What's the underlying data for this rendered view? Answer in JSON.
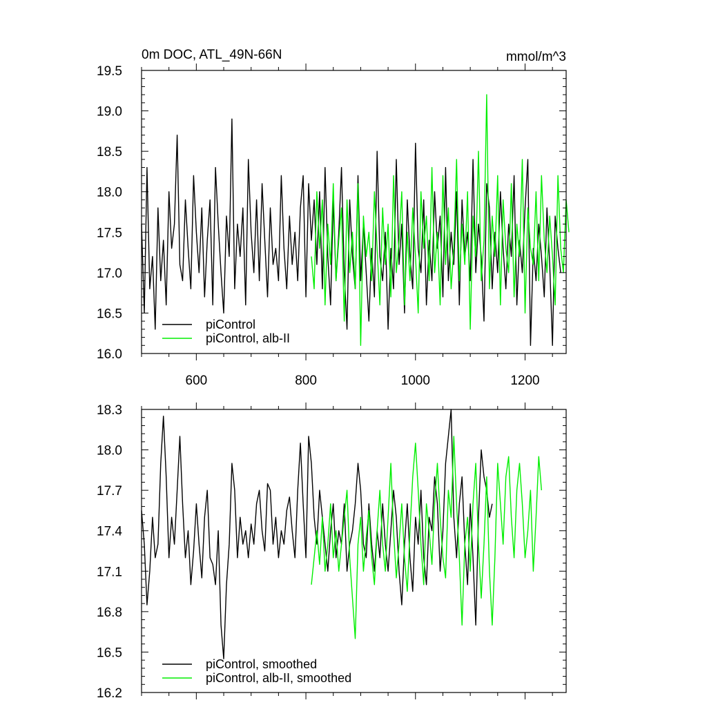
{
  "chart_data": [
    {
      "type": "line",
      "title": "0m DOC, ATL_49N-66N",
      "units": "mmol/m^3",
      "xlim": [
        500,
        1275
      ],
      "ylim": [
        16.0,
        19.5
      ],
      "xticks": [
        600,
        800,
        1000,
        1200
      ],
      "xtick_labels": [
        "600",
        "800",
        "1000",
        "1200"
      ],
      "yticks": [
        16.0,
        16.5,
        17.0,
        17.5,
        18.0,
        18.5,
        19.0,
        19.5
      ],
      "ytick_labels": [
        "16.0",
        "16.5",
        "17.0",
        "17.5",
        "18.0",
        "18.5",
        "19.0",
        "19.5"
      ],
      "grid": false,
      "legend_position": "bottom-left",
      "series": [
        {
          "name": "piControl",
          "color": "#000000",
          "x_start": 500,
          "x_step": 5,
          "values": [
            17.6,
            16.5,
            18.3,
            16.8,
            17.2,
            16.3,
            17.8,
            16.9,
            17.4,
            16.6,
            18.0,
            17.3,
            17.6,
            18.7,
            17.1,
            16.9,
            17.9,
            17.3,
            16.8,
            18.2,
            17.5,
            17.0,
            17.8,
            16.7,
            17.4,
            17.9,
            16.6,
            18.3,
            17.6,
            17.0,
            16.5,
            17.7,
            17.2,
            18.9,
            16.8,
            17.6,
            17.2,
            17.8,
            16.6,
            18.4,
            17.5,
            17.0,
            17.9,
            16.9,
            18.1,
            17.4,
            16.7,
            17.8,
            17.1,
            17.3,
            16.9,
            18.2,
            17.3,
            16.8,
            17.7,
            17.1,
            17.5,
            16.9,
            17.8,
            18.2,
            16.7,
            18.1,
            17.4,
            17.9,
            17.1,
            18.0,
            16.8,
            18.3,
            17.2,
            16.6,
            17.9,
            16.9,
            17.5,
            18.3,
            17.0,
            16.3,
            17.9,
            17.2,
            16.8,
            18.2,
            16.9,
            17.6,
            17.0,
            16.4,
            17.3,
            16.7,
            18.5,
            17.2,
            16.9,
            17.5,
            16.3,
            17.3,
            16.8,
            18.4,
            17.1,
            17.6,
            16.5,
            17.9,
            17.2,
            16.8,
            18.6,
            17.3,
            17.0,
            17.9,
            16.6,
            17.4,
            16.9,
            18.0,
            17.3,
            17.7,
            16.7,
            18.3,
            16.9,
            17.5,
            17.1,
            18.0,
            16.6,
            17.9,
            17.2,
            17.5,
            16.9,
            18.4,
            17.0,
            17.6,
            17.2,
            16.4,
            18.1,
            17.8,
            16.8,
            17.5,
            17.0,
            18.0,
            17.3,
            16.8,
            17.6,
            17.2,
            18.2,
            16.6,
            17.4,
            17.0,
            17.8,
            18.4,
            16.1,
            17.3,
            16.9,
            17.6,
            17.2,
            16.7,
            17.8,
            17.1,
            16.1,
            17.7,
            17.3,
            17.0
          ]
        },
        {
          "name": "piControl, alb-II",
          "color": "#00ee00",
          "x_start": 810,
          "x_step": 5,
          "values": [
            17.2,
            16.8,
            18.0,
            17.3,
            17.9,
            16.6,
            17.6,
            17.1,
            18.1,
            16.9,
            17.4,
            17.8,
            16.4,
            17.9,
            17.0,
            17.5,
            16.8,
            18.1,
            16.1,
            17.7,
            17.2,
            17.5,
            16.9,
            18.0,
            17.3,
            16.6,
            17.8,
            17.1,
            17.6,
            16.7,
            18.2,
            17.0,
            17.4,
            18.0,
            16.6,
            17.5,
            16.9,
            17.8,
            17.2,
            16.5,
            18.0,
            17.3,
            17.7,
            16.9,
            18.3,
            17.0,
            17.5,
            16.6,
            18.2,
            17.1,
            17.8,
            16.8,
            17.3,
            18.4,
            16.9,
            17.6,
            17.1,
            18.0,
            16.3,
            17.7,
            17.2,
            18.5,
            16.9,
            17.4,
            19.2,
            16.8,
            17.7,
            17.2,
            18.2,
            16.6,
            17.9,
            17.3,
            17.0,
            18.1,
            16.7,
            17.6,
            17.2,
            18.4,
            16.5,
            17.8,
            17.3,
            17.1,
            18.0,
            16.9,
            18.2,
            17.4,
            17.0,
            17.7,
            17.2,
            16.6,
            18.2,
            17.3,
            17.0,
            17.9,
            17.5
          ]
        }
      ]
    },
    {
      "type": "line",
      "xlim": [
        500,
        1275
      ],
      "ylim": [
        16.2,
        18.3
      ],
      "xticks": [
        600,
        800,
        1000,
        1200
      ],
      "yticks": [
        16.2,
        16.5,
        16.8,
        17.1,
        17.4,
        17.7,
        18.0,
        18.3
      ],
      "ytick_labels": [
        "16.2",
        "16.5",
        "16.8",
        "17.1",
        "17.4",
        "17.7",
        "18.0",
        "18.3"
      ],
      "grid": false,
      "legend_position": "bottom-left",
      "series": [
        {
          "name": "piControl, smoothed",
          "color": "#000000",
          "x_start": 500,
          "x_step": 5,
          "values": [
            17.55,
            17.3,
            16.85,
            17.1,
            17.5,
            17.2,
            17.3,
            17.9,
            18.25,
            17.8,
            17.2,
            17.5,
            17.3,
            17.7,
            18.1,
            17.6,
            17.2,
            17.4,
            17.0,
            17.25,
            17.6,
            17.3,
            17.05,
            17.5,
            17.7,
            17.2,
            17.15,
            17.0,
            17.4,
            16.7,
            16.45,
            17.0,
            17.3,
            17.9,
            17.7,
            17.2,
            17.5,
            17.3,
            17.4,
            17.2,
            17.45,
            17.3,
            17.6,
            17.7,
            17.4,
            17.25,
            17.75,
            17.7,
            17.3,
            17.5,
            17.2,
            17.4,
            17.3,
            17.55,
            17.65,
            17.4,
            17.2,
            17.7,
            18.05,
            17.6,
            17.2,
            18.1,
            17.9,
            17.5,
            17.3,
            17.7,
            17.5,
            17.3,
            17.1,
            17.4,
            17.6,
            17.2,
            17.4,
            17.3,
            17.6,
            17.1,
            17.3,
            17.4,
            17.6,
            17.9,
            17.7,
            17.3,
            17.2,
            17.6,
            17.3,
            17.1,
            17.4,
            17.2,
            17.6,
            17.3,
            17.1,
            17.4,
            17.7,
            17.5,
            17.1,
            16.85,
            17.3,
            17.6,
            17.2,
            16.95,
            17.5,
            17.3,
            17.7,
            17.2,
            17.0,
            17.5,
            17.4,
            17.8,
            17.6,
            17.1,
            17.4,
            17.9,
            18.1,
            18.3,
            17.5,
            17.2,
            17.6,
            17.8,
            17.3,
            17.0,
            17.6,
            17.2,
            16.7,
            17.5,
            18.0,
            17.8,
            17.7,
            17.5,
            17.6
          ]
        },
        {
          "name": "piControl, alb-II, smoothed",
          "color": "#00ee00",
          "x_start": 810,
          "x_step": 5,
          "values": [
            17.0,
            17.2,
            17.4,
            17.15,
            17.5,
            17.1,
            17.3,
            17.6,
            17.2,
            17.4,
            17.1,
            17.3,
            17.5,
            17.7,
            17.2,
            16.9,
            16.6,
            17.3,
            17.5,
            17.1,
            17.35,
            17.55,
            17.2,
            17.0,
            17.4,
            17.7,
            17.3,
            17.1,
            17.5,
            17.9,
            17.4,
            17.05,
            17.3,
            17.6,
            17.2,
            16.95,
            17.4,
            17.8,
            18.05,
            17.7,
            17.3,
            17.0,
            17.6,
            17.4,
            17.15,
            17.6,
            17.9,
            17.5,
            17.2,
            17.05,
            17.7,
            17.5,
            18.1,
            17.6,
            17.2,
            16.7,
            17.3,
            17.5,
            17.1,
            17.6,
            17.9,
            17.3,
            16.9,
            17.3,
            17.8,
            17.1,
            16.7,
            17.2,
            17.9,
            17.6,
            17.3,
            17.8,
            17.95,
            17.5,
            17.2,
            17.7,
            17.9,
            17.6,
            17.2,
            17.4,
            17.7,
            17.1,
            17.5,
            17.95,
            17.7
          ]
        }
      ]
    }
  ]
}
